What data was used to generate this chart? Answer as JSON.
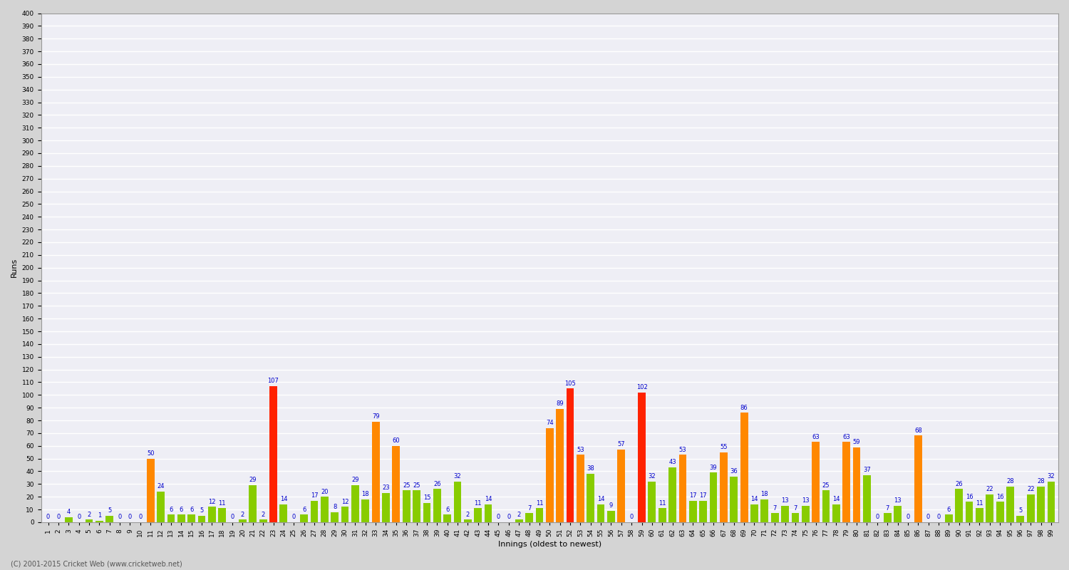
{
  "ylabel": "Runs",
  "xlabel": "Innings (oldest to newest)",
  "footer": "(C) 2001-2015 Cricket Web (www.cricketweb.net)",
  "ylim": [
    0,
    400
  ],
  "innings": [
    1,
    2,
    3,
    4,
    5,
    6,
    7,
    8,
    9,
    10,
    11,
    12,
    13,
    14,
    15,
    16,
    17,
    18,
    19,
    20,
    21,
    22,
    23,
    24,
    25,
    26,
    27,
    28,
    29,
    30,
    31,
    32,
    33,
    34,
    35,
    36,
    37,
    38,
    39,
    40,
    41,
    42,
    43,
    44,
    45,
    46,
    47,
    48,
    49,
    50,
    51,
    52,
    53,
    54,
    55,
    56,
    57,
    58,
    59,
    60,
    61,
    62,
    63,
    64,
    65,
    66,
    67,
    68,
    69,
    70,
    71,
    72,
    73,
    74,
    75,
    76,
    77,
    78,
    79,
    80,
    81,
    82,
    83,
    84,
    85,
    86,
    87,
    88,
    89,
    90,
    91,
    92,
    93,
    94,
    95,
    96,
    97,
    98,
    99
  ],
  "scores": [
    0,
    0,
    4,
    0,
    2,
    1,
    5,
    0,
    0,
    0,
    50,
    24,
    6,
    6,
    6,
    5,
    12,
    11,
    0,
    2,
    29,
    2,
    107,
    14,
    0,
    6,
    17,
    20,
    8,
    12,
    29,
    18,
    79,
    23,
    60,
    25,
    25,
    15,
    26,
    6,
    32,
    2,
    11,
    14,
    0,
    0,
    2,
    7,
    11,
    74,
    89,
    105,
    53,
    38,
    14,
    9,
    57,
    0,
    102,
    32,
    11,
    43,
    53,
    17,
    17,
    39,
    55,
    36,
    86,
    14,
    18,
    7,
    13,
    7,
    13,
    63,
    25,
    14,
    63,
    59,
    37,
    0,
    7,
    13,
    0,
    68,
    0,
    0,
    6,
    26,
    16,
    11,
    22,
    16,
    28,
    5,
    22,
    28,
    32
  ],
  "is_century": [
    false,
    false,
    false,
    false,
    false,
    false,
    false,
    false,
    false,
    false,
    false,
    false,
    false,
    false,
    false,
    false,
    false,
    false,
    false,
    false,
    false,
    false,
    true,
    false,
    false,
    false,
    false,
    false,
    false,
    false,
    false,
    false,
    false,
    false,
    false,
    false,
    false,
    false,
    false,
    false,
    false,
    false,
    false,
    false,
    false,
    false,
    false,
    false,
    false,
    false,
    false,
    true,
    false,
    false,
    false,
    false,
    false,
    false,
    true,
    false,
    false,
    false,
    false,
    false,
    false,
    false,
    false,
    false,
    false,
    false,
    false,
    false,
    false,
    false,
    false,
    false,
    false,
    false,
    false,
    false,
    false,
    false,
    false,
    false,
    false,
    false,
    false,
    false,
    false,
    false,
    false,
    false,
    false,
    false,
    false,
    false,
    false,
    false,
    false
  ],
  "color_century": "#ff2200",
  "color_fifty": "#ff8800",
  "color_normal": "#88cc00",
  "bg_color": "#d4d4d4",
  "plot_bg_color": "#eeeef5",
  "grid_color": "#ffffff",
  "label_color": "#0000cc",
  "label_fontsize": 6.0,
  "title_fontsize": 10,
  "axis_fontsize": 8,
  "tick_fontsize": 6.5
}
